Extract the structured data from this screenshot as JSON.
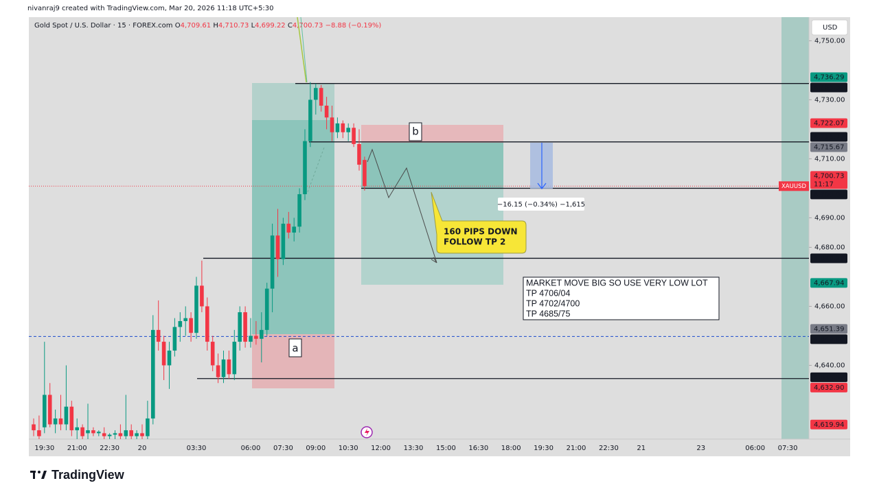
{
  "chart_data": {
    "type": "candlestick",
    "credit": "nivanraj9 created with TradingView.com, Mar 20, 2026 11:18 UTC+5:30",
    "header": {
      "symbol": "Gold Spot / U.S. Dollar · 15 · FOREX.com",
      "o": "O",
      "open": "4,709.61",
      "h": "H",
      "high": "4,710.73",
      "l": "L",
      "low": "4,699.22",
      "c": "C",
      "close": "4,700.73",
      "change": "−8.88 (−0.19%)"
    },
    "currency": "USD",
    "brand": "TradingView",
    "up_color": "#089981",
    "down_color": "#f23645",
    "ylim": [
      4615,
      4758
    ],
    "yticks": [
      {
        "value": 4750,
        "label": "4,750.00"
      },
      {
        "value": 4730,
        "label": "4,730.00"
      },
      {
        "value": 4710,
        "label": "4,710.00"
      },
      {
        "value": 4690,
        "label": "4,690.00"
      },
      {
        "value": 4680,
        "label": "4,680.00"
      },
      {
        "value": 4660,
        "label": "4,660.00"
      },
      {
        "value": 4640,
        "label": "4,640.00"
      }
    ],
    "categories": [
      null,
      null,
      "19:30",
      null,
      null,
      null,
      null,
      null,
      "21:00",
      null,
      null,
      null,
      null,
      null,
      "22:30",
      null,
      null,
      null,
      null,
      null,
      "20",
      null,
      null,
      null,
      null,
      null,
      null,
      null,
      null,
      null,
      "03:30",
      null,
      null,
      null,
      null,
      null,
      null,
      null,
      null,
      null,
      "06:00",
      null,
      null,
      null,
      null,
      null,
      "07:30",
      null,
      null,
      null,
      null,
      null,
      "09:00",
      null,
      null,
      null,
      null,
      null,
      "10:30",
      null,
      null,
      null,
      null,
      null,
      "12:00",
      null,
      null,
      null,
      null,
      null,
      "13:30",
      null,
      null,
      null,
      null,
      null,
      "15:00",
      null,
      null,
      null,
      null,
      null,
      "16:30",
      null,
      null,
      null,
      null,
      null,
      "18:00",
      null,
      null,
      null,
      null,
      null,
      "19:30",
      null,
      null,
      null,
      null,
      null,
      "21:00",
      null,
      null,
      null,
      null,
      null,
      "22:30",
      null,
      null,
      null,
      null,
      null,
      "21",
      null,
      null,
      null,
      null,
      null,
      null,
      null,
      null,
      null,
      null,
      "23",
      null,
      null,
      null,
      null,
      null,
      null,
      null,
      null,
      null,
      "06:00",
      null,
      null,
      null,
      null,
      null,
      "07:30"
    ],
    "open": [
      4620,
      4618,
      4619,
      4630,
      4620,
      4622,
      4620,
      4626,
      4618,
      4619,
      4617,
      4618,
      4617,
      4617,
      4616,
      4616.5,
      4617,
      4616,
      4618,
      4616,
      4617,
      4616,
      4622,
      4652,
      4648,
      4640,
      4645,
      4653,
      4655,
      4656,
      4651,
      4667,
      4660,
      4648,
      4640,
      4636,
      4642,
      4637,
      4648,
      4658,
      4648,
      4650,
      4649,
      4652,
      4666,
      4684,
      4676,
      4688,
      4685,
      4687,
      4698,
      4716,
      4730,
      4734,
      4728,
      4724,
      4719,
      4722,
      4719,
      4720.5,
      4715,
      4709.61,
      null,
      null,
      null,
      null,
      null,
      null,
      null,
      null,
      null,
      null,
      null,
      null,
      null,
      null,
      null,
      null,
      null,
      null,
      null,
      null,
      null,
      null,
      null,
      null,
      null,
      null,
      null,
      null,
      null,
      null,
      null,
      null,
      null,
      null,
      null,
      null,
      null,
      null,
      null,
      null,
      null,
      null,
      null,
      null,
      null,
      null,
      null,
      null,
      null,
      null,
      null,
      null,
      null,
      null,
      null,
      null,
      null,
      null,
      null,
      null,
      null,
      null,
      null,
      null,
      null,
      null,
      null,
      null,
      null,
      null,
      null,
      null,
      null,
      null,
      null,
      null,
      null,
      null
    ],
    "high": [
      4622,
      4623,
      4648,
      4634,
      4625,
      4630,
      4640,
      4628,
      4622,
      4620,
      4627,
      4619,
      4618,
      4619,
      4617,
      4618,
      4620,
      4630,
      4620,
      4618,
      4620,
      4628,
      4657,
      4662,
      4650,
      4648,
      4656,
      4658,
      4660,
      4658,
      4670,
      4675.5,
      4663,
      4650,
      4644,
      4645,
      4645,
      4652,
      4660,
      4660,
      4656,
      4655,
      4658,
      4668,
      4688,
      4693,
      4690,
      4692,
      4690,
      4700,
      4720,
      4736,
      4735.5,
      4735,
      4731,
      4728,
      4724,
      4723,
      4722,
      4722,
      4720,
      4710.73,
      null,
      null,
      null,
      null,
      null,
      null,
      null,
      null,
      null,
      null,
      null,
      null,
      null,
      null,
      null,
      null,
      null,
      null,
      null,
      null,
      null,
      null,
      null,
      null,
      null,
      null,
      null,
      null,
      null,
      null,
      null,
      null,
      null,
      null,
      null,
      null,
      null,
      null,
      null,
      null,
      null,
      null,
      null,
      null,
      null,
      null,
      null,
      null,
      null,
      null,
      null,
      null,
      null,
      null,
      null,
      null,
      null,
      null,
      null,
      null,
      null,
      null,
      null,
      null,
      null,
      null,
      null,
      null,
      null,
      null,
      null,
      null,
      null,
      null,
      null,
      null,
      null,
      null
    ],
    "low": [
      4616,
      4615,
      4617,
      4619,
      4617,
      4618,
      4618,
      4616,
      4615,
      4615,
      4615,
      4616,
      4616,
      4615,
      4615,
      4615,
      4615,
      4615,
      4615,
      4615,
      4615,
      4615,
      4620,
      4645,
      4635,
      4632,
      4643,
      4648,
      4650,
      4648,
      4649,
      4658,
      4645,
      4638,
      4634,
      4634,
      4635.5,
      4635,
      4645,
      4646,
      4646,
      4647,
      4641,
      4650,
      4658,
      4670,
      4674,
      4683,
      4682,
      4685,
      4696,
      4714,
      4725,
      4726,
      4720,
      4716,
      4717,
      4717,
      4716,
      4714,
      4706,
      4699.22,
      null,
      null,
      null,
      null,
      null,
      null,
      null,
      null,
      null,
      null,
      null,
      null,
      null,
      null,
      null,
      null,
      null,
      null,
      null,
      null,
      null,
      null,
      null,
      null,
      null,
      null,
      null,
      null,
      null,
      null,
      null,
      null,
      null,
      null,
      null,
      null,
      null,
      null,
      null,
      null,
      null,
      null,
      null,
      null,
      null,
      null,
      null,
      null,
      null,
      null,
      null,
      null,
      null,
      null,
      null,
      null,
      null,
      null,
      null,
      null,
      null,
      null,
      null,
      null,
      null,
      null,
      null,
      null,
      null,
      null,
      null,
      null,
      null,
      null,
      null,
      null,
      null,
      null
    ],
    "close": [
      4618,
      4616,
      4630,
      4620,
      4622,
      4620,
      4626,
      4618,
      4619,
      4616,
      4618,
      4617,
      4617.5,
      4616,
      4616.5,
      4617,
      4616,
      4618,
      4616,
      4617,
      4616,
      4622,
      4652,
      4648,
      4640,
      4645,
      4653,
      4655,
      4656,
      4651,
      4667,
      4660,
      4648,
      4640,
      4636,
      4642,
      4637,
      4648,
      4658,
      4648,
      4650,
      4649,
      4652,
      4666,
      4684,
      4676,
      4688,
      4685,
      4687,
      4698,
      4716,
      4730,
      4734,
      4728,
      4724,
      4719,
      4722,
      4719,
      4720.5,
      4715,
      4708,
      4700.73,
      null,
      null,
      null,
      null,
      null,
      null,
      null,
      null,
      null,
      null,
      null,
      null,
      null,
      null,
      null,
      null,
      null,
      null,
      null,
      null,
      null,
      null,
      null,
      null,
      null,
      null,
      null,
      null,
      null,
      null,
      null,
      null,
      null,
      null,
      null,
      null,
      null,
      null,
      null,
      null,
      null,
      null,
      null,
      null,
      null,
      null,
      null,
      null,
      null,
      null,
      null,
      null,
      null,
      null,
      null,
      null,
      null,
      null,
      null,
      null,
      null,
      null,
      null,
      null,
      null,
      null,
      null,
      null,
      null,
      null,
      null,
      null,
      null,
      null,
      null,
      null,
      null,
      null
    ],
    "price_labels": [
      {
        "value": 4736.29,
        "label": "4,736.29",
        "color": "#089981"
      },
      {
        "value": 4735.52,
        "label": "4,735.52",
        "color": "#131722",
        "line_color": "#131722",
        "line_style": "solid"
      },
      {
        "value": 4722.07,
        "label": "4,722.07",
        "color": "#f23645"
      },
      {
        "value": 4715.72,
        "label": "4,715.72",
        "color": "#131722",
        "line_color": "#131722",
        "line_style": "solid"
      },
      {
        "value": 4715.67,
        "label": "4,715.67",
        "color": "#787b86"
      },
      {
        "value": 4700.73,
        "label": "4,700.73",
        "color": "#f23645",
        "line_color": "#f23645",
        "line_style": "dotted",
        "tag": "XAUUSD",
        "countdown": "11:17"
      },
      {
        "value": 4700.0,
        "label": "4,700.00",
        "color": "#131722",
        "line_color": "#131722",
        "line_style": "solid"
      },
      {
        "value": 4676.28,
        "label": "4,676.28",
        "color": "#131722",
        "line_color": "#131722",
        "line_style": "solid"
      },
      {
        "value": 4667.94,
        "label": "4,667.94",
        "color": "#089981"
      },
      {
        "value": 4651.39,
        "label": "4,651.39",
        "color": "#787b86"
      },
      {
        "value": 4649.8,
        "label": "4,649.80",
        "color": "#131722",
        "line_color": "#1848cc",
        "line_style": "dashed"
      },
      {
        "value": 4635.52,
        "label": "4,635.52",
        "color": "#131722",
        "line_color": "#131722",
        "line_style": "solid"
      },
      {
        "value": 4632.9,
        "label": "4,632.90",
        "color": "#f23645"
      },
      {
        "value": 4619.94,
        "label": "4,619.94",
        "color": "#f23645"
      }
    ],
    "annotations": {
      "a": "a",
      "b": "b",
      "measure": "−16.15 (−0.34%) −1,615",
      "callout": [
        "160  PIPS DOWN",
        "FOLLOW TP 2"
      ],
      "note": [
        "MARKET MOVE BIG SO USE VERY LOW LOT",
        "TP  4706/04",
        "TP 4702/4700",
        "TP 4685/75"
      ]
    }
  }
}
